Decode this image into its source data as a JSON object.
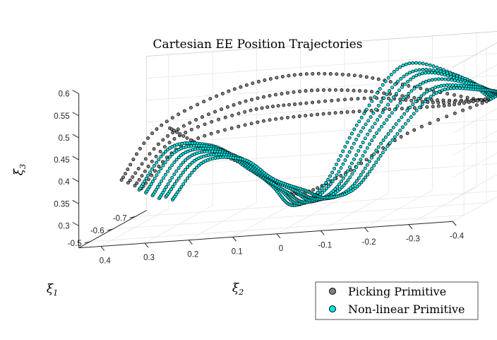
{
  "chart_data": {
    "type": "scatter",
    "projection": "3d",
    "title": "Cartesian EE Position Trajectories",
    "axes": {
      "x": {
        "symbol": "ξ",
        "sub": "1",
        "ticks": [
          "-0.5",
          "-0.6",
          "-0.7"
        ],
        "range": [
          -0.75,
          -0.45
        ]
      },
      "y": {
        "symbol": "ξ",
        "sub": "2",
        "ticks": [
          "0.4",
          "0.3",
          "0.2",
          "0.1",
          "0",
          "-0.1",
          "-0.2",
          "-0.3",
          "-0.4"
        ],
        "range": [
          0.45,
          -0.4
        ]
      },
      "z": {
        "symbol": "ξ",
        "sub": "3",
        "ticks": [
          "0.6",
          "0.55",
          "0.5",
          "0.45",
          "0.4",
          "0.35",
          "0.3"
        ],
        "range": [
          0.25,
          0.6
        ]
      }
    },
    "grid": true,
    "legend_position": "bottom-right",
    "series": [
      {
        "name": "Picking Primitive",
        "color": "#808080",
        "trajectories": [
          [
            [
              -0.6,
              0.43,
              0.36
            ],
            [
              -0.6,
              0.35,
              0.47
            ],
            [
              -0.6,
              0.2,
              0.54
            ],
            [
              -0.6,
              0.05,
              0.57
            ],
            [
              -0.6,
              -0.1,
              0.56
            ],
            [
              -0.6,
              -0.25,
              0.52
            ],
            [
              -0.6,
              -0.4,
              0.48
            ]
          ],
          [
            [
              -0.61,
              0.42,
              0.35
            ],
            [
              -0.61,
              0.33,
              0.45
            ],
            [
              -0.61,
              0.18,
              0.51
            ],
            [
              -0.61,
              0.03,
              0.53
            ],
            [
              -0.61,
              -0.12,
              0.52
            ],
            [
              -0.61,
              -0.27,
              0.49
            ],
            [
              -0.61,
              -0.4,
              0.48
            ]
          ],
          [
            [
              -0.62,
              0.41,
              0.34
            ],
            [
              -0.62,
              0.32,
              0.44
            ],
            [
              -0.62,
              0.16,
              0.49
            ],
            [
              -0.62,
              0.02,
              0.5
            ],
            [
              -0.62,
              -0.14,
              0.5
            ],
            [
              -0.62,
              -0.28,
              0.48
            ],
            [
              -0.62,
              -0.4,
              0.48
            ]
          ],
          [
            [
              -0.63,
              0.4,
              0.33
            ],
            [
              -0.63,
              0.31,
              0.42
            ],
            [
              -0.63,
              0.15,
              0.46
            ],
            [
              -0.63,
              0.0,
              0.47
            ],
            [
              -0.63,
              -0.15,
              0.47
            ],
            [
              -0.63,
              -0.3,
              0.47
            ],
            [
              -0.63,
              -0.4,
              0.48
            ]
          ],
          [
            [
              -0.6,
              0.32,
              0.47
            ],
            [
              -0.6,
              0.24,
              0.42
            ],
            [
              -0.6,
              0.16,
              0.38
            ],
            [
              -0.6,
              0.1,
              0.34
            ],
            [
              -0.6,
              0.03,
              0.3
            ],
            [
              -0.6,
              -0.08,
              0.34
            ],
            [
              -0.6,
              -0.22,
              0.42
            ],
            [
              -0.6,
              -0.4,
              0.48
            ]
          ]
        ]
      },
      {
        "name": "Non-linear Primitive",
        "color": "#00e5e5",
        "trajectories": [
          [
            [
              -0.62,
              0.4,
              0.33
            ],
            [
              -0.62,
              0.33,
              0.42
            ],
            [
              -0.62,
              0.24,
              0.42
            ],
            [
              -0.62,
              0.17,
              0.38
            ],
            [
              -0.62,
              0.1,
              0.32
            ],
            [
              -0.62,
              0.05,
              0.27
            ],
            [
              -0.62,
              -0.02,
              0.31
            ],
            [
              -0.62,
              -0.1,
              0.45
            ],
            [
              -0.62,
              -0.2,
              0.57
            ],
            [
              -0.62,
              -0.32,
              0.54
            ],
            [
              -0.62,
              -0.4,
              0.48
            ]
          ],
          [
            [
              -0.63,
              0.39,
              0.32
            ],
            [
              -0.63,
              0.32,
              0.41
            ],
            [
              -0.63,
              0.23,
              0.41
            ],
            [
              -0.63,
              0.16,
              0.36
            ],
            [
              -0.63,
              0.09,
              0.31
            ],
            [
              -0.63,
              0.04,
              0.27
            ],
            [
              -0.63,
              -0.03,
              0.31
            ],
            [
              -0.63,
              -0.11,
              0.44
            ],
            [
              -0.63,
              -0.21,
              0.55
            ],
            [
              -0.63,
              -0.33,
              0.53
            ],
            [
              -0.63,
              -0.4,
              0.48
            ]
          ],
          [
            [
              -0.64,
              0.38,
              0.31
            ],
            [
              -0.64,
              0.31,
              0.4
            ],
            [
              -0.64,
              0.22,
              0.4
            ],
            [
              -0.64,
              0.15,
              0.35
            ],
            [
              -0.64,
              0.08,
              0.3
            ],
            [
              -0.64,
              0.03,
              0.27
            ],
            [
              -0.64,
              -0.04,
              0.3
            ],
            [
              -0.64,
              -0.12,
              0.43
            ],
            [
              -0.64,
              -0.22,
              0.54
            ],
            [
              -0.64,
              -0.33,
              0.52
            ],
            [
              -0.64,
              -0.4,
              0.48
            ]
          ],
          [
            [
              -0.65,
              0.37,
              0.3
            ],
            [
              -0.65,
              0.3,
              0.39
            ],
            [
              -0.65,
              0.21,
              0.39
            ],
            [
              -0.65,
              0.14,
              0.34
            ],
            [
              -0.65,
              0.07,
              0.3
            ],
            [
              -0.65,
              0.02,
              0.27
            ],
            [
              -0.65,
              -0.05,
              0.3
            ],
            [
              -0.65,
              -0.13,
              0.42
            ],
            [
              -0.65,
              -0.23,
              0.52
            ],
            [
              -0.65,
              -0.34,
              0.51
            ],
            [
              -0.65,
              -0.4,
              0.48
            ]
          ],
          [
            [
              -0.66,
              0.36,
              0.3
            ],
            [
              -0.66,
              0.29,
              0.38
            ],
            [
              -0.66,
              0.2,
              0.38
            ],
            [
              -0.66,
              0.13,
              0.33
            ],
            [
              -0.66,
              0.06,
              0.29
            ],
            [
              -0.66,
              0.01,
              0.27
            ],
            [
              -0.66,
              -0.06,
              0.29
            ],
            [
              -0.66,
              -0.14,
              0.4
            ],
            [
              -0.66,
              -0.24,
              0.5
            ],
            [
              -0.66,
              -0.34,
              0.5
            ],
            [
              -0.66,
              -0.4,
              0.48
            ]
          ],
          [
            [
              -0.67,
              0.35,
              0.29
            ],
            [
              -0.67,
              0.28,
              0.37
            ],
            [
              -0.67,
              0.19,
              0.37
            ],
            [
              -0.67,
              0.12,
              0.32
            ],
            [
              -0.67,
              0.05,
              0.29
            ],
            [
              -0.67,
              0.0,
              0.27
            ],
            [
              -0.67,
              -0.07,
              0.29
            ],
            [
              -0.67,
              -0.15,
              0.39
            ],
            [
              -0.67,
              -0.25,
              0.49
            ],
            [
              -0.67,
              -0.35,
              0.49
            ],
            [
              -0.67,
              -0.4,
              0.48
            ]
          ]
        ]
      }
    ]
  }
}
